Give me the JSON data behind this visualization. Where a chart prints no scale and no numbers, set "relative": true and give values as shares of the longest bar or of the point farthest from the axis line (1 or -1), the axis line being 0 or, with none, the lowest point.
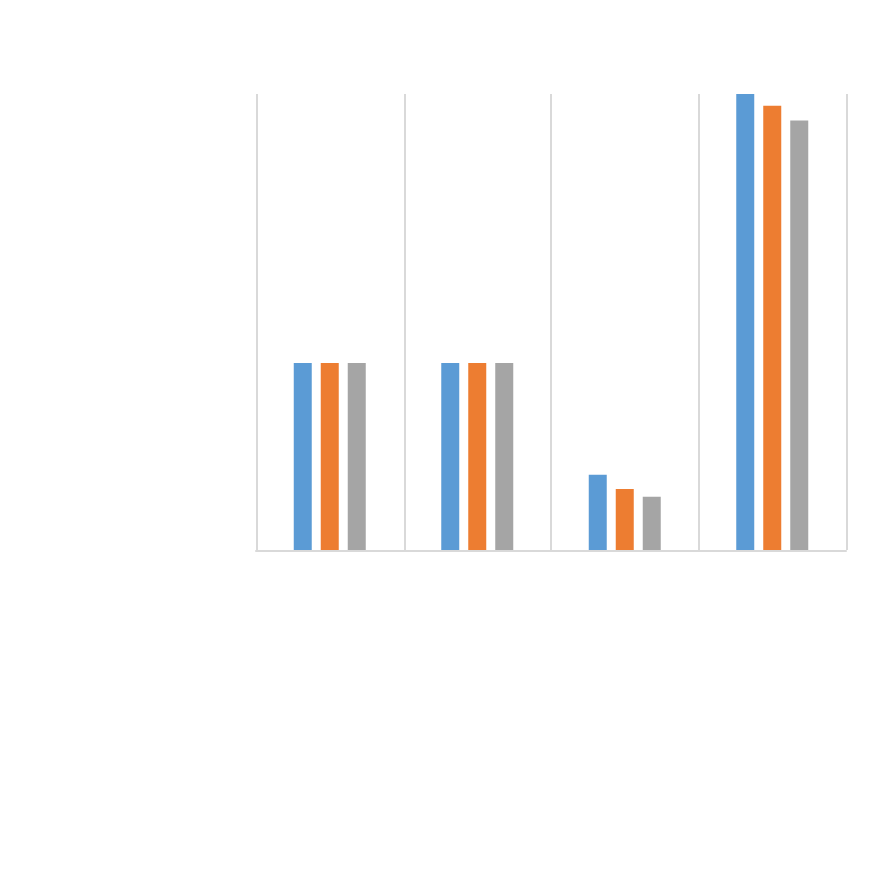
{
  "chart_data": {
    "type": "bar",
    "relative": true,
    "categories": [
      null,
      null,
      null,
      null
    ],
    "series": [
      {
        "color": "#5b9bd5",
        "values": [
          0.41,
          0.41,
          0.165,
          1
        ]
      },
      {
        "color": "#ed7d31",
        "values": [
          0.41,
          0.41,
          0.134,
          0.974
        ]
      },
      {
        "color": "#a5a5a5",
        "values": [
          0.41,
          0.41,
          0.117,
          0.942
        ]
      }
    ],
    "grid": "x"
  }
}
